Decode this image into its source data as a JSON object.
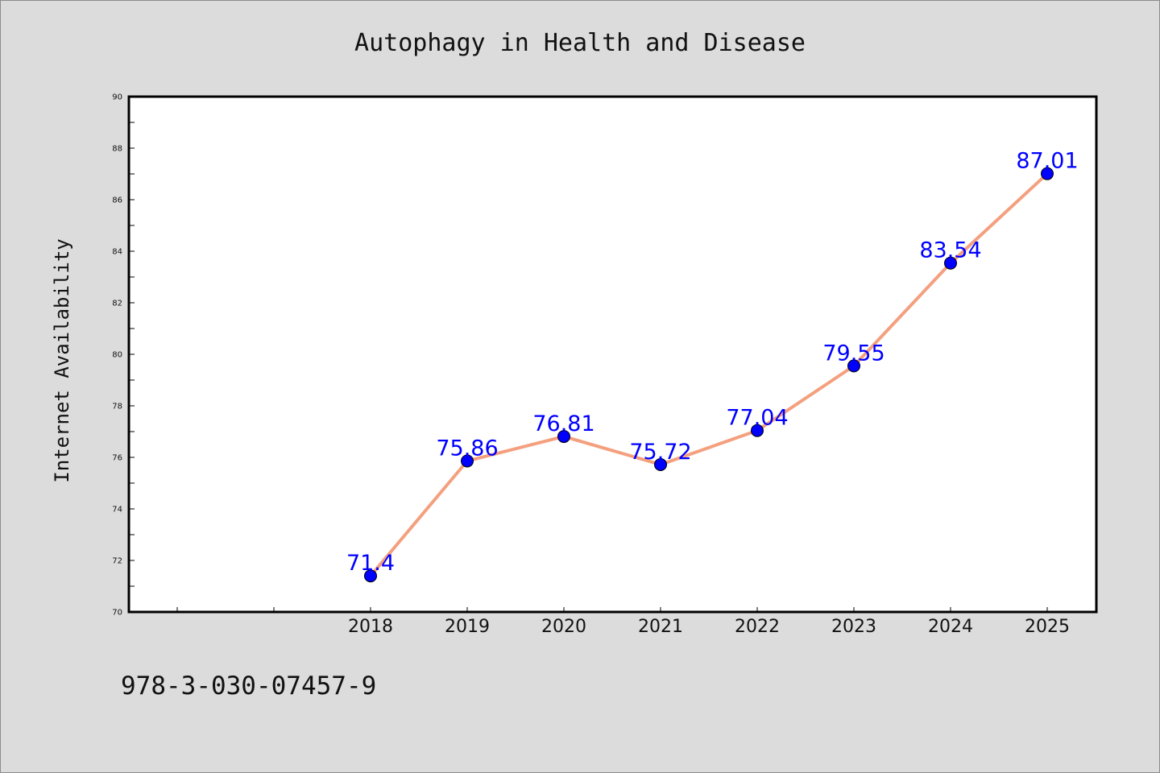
{
  "chart_data": {
    "type": "line",
    "title": "Autophagy in Health and Disease",
    "xlabel": "",
    "ylabel": "Internet Availability",
    "categories": [
      "2018",
      "2019",
      "2020",
      "2021",
      "2022",
      "2023",
      "2024",
      "2025"
    ],
    "series": [
      {
        "values": [
          71.4,
          75.86,
          76.81,
          75.72,
          77.04,
          79.55,
          83.54,
          87.01
        ],
        "labels": [
          "71.4",
          "75.86",
          "76.81",
          "75.72",
          "77.04",
          "79.55",
          "83.54",
          "87.01"
        ]
      }
    ],
    "ylim": [
      70,
      90
    ],
    "yticks": [
      "70",
      "72",
      "74",
      "76",
      "78",
      "80",
      "82",
      "84",
      "86",
      "88",
      "90"
    ],
    "grid": false,
    "legend": "none",
    "colors": {
      "line": "#f4a07f",
      "marker": "#0000ff",
      "label": "#0000ff",
      "plot_background": "#ffffff",
      "figure_background": "#dcdcdc"
    }
  },
  "footer": {
    "code": "978-3-030-07457-9"
  }
}
